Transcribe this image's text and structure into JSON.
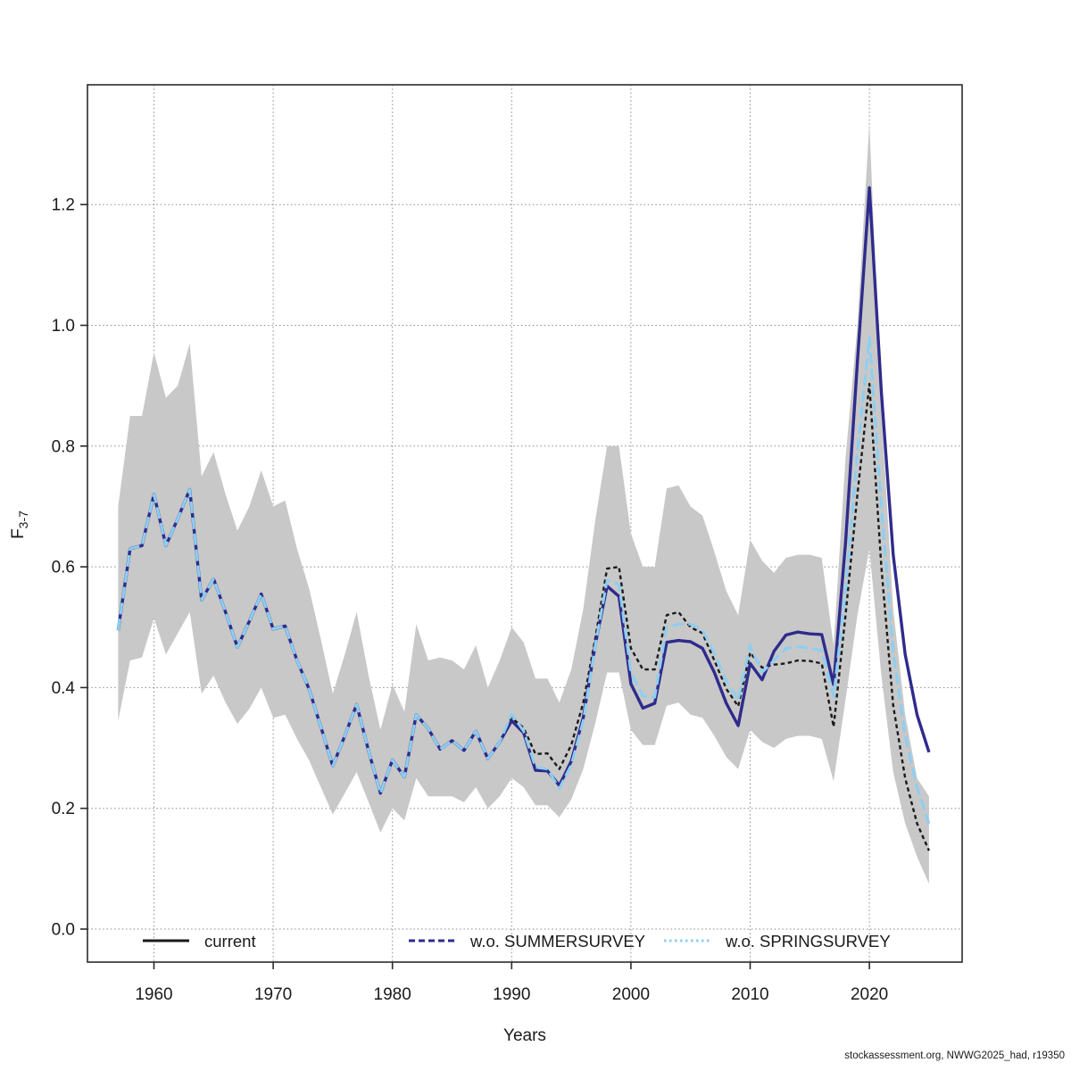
{
  "page": {
    "background": "#ffffff"
  },
  "footer": {
    "text": "stockassessment.org, NWWG2025_had, r19350"
  },
  "chart_data": {
    "type": "line",
    "title": "",
    "xlabel": "Years",
    "ylabel_main": "F",
    "ylabel_sub": "3-7",
    "x_ticks": [
      1960,
      1970,
      1980,
      1990,
      2000,
      2010,
      2020
    ],
    "y_ticks": [
      0.0,
      0.2,
      0.4,
      0.6,
      0.8,
      1.0,
      1.2
    ],
    "y_tick_labels": [
      "0.0",
      "0.2",
      "0.4",
      "0.6",
      "0.8",
      "1.0",
      "1.2"
    ],
    "xlim": [
      1954.4,
      2027.8
    ],
    "ylim": [
      -0.109,
      1.397
    ],
    "grid": "dotted",
    "legend_position": "bottom-inside",
    "band": {
      "color": "#c8c8c8",
      "belongs_to": "current",
      "lower": [
        0.345,
        0.445,
        0.45,
        0.515,
        0.455,
        0.49,
        0.525,
        0.39,
        0.42,
        0.375,
        0.34,
        0.365,
        0.4,
        0.35,
        0.355,
        0.315,
        0.28,
        0.235,
        0.19,
        0.225,
        0.26,
        0.21,
        0.16,
        0.2,
        0.18,
        0.25,
        0.22,
        0.22,
        0.22,
        0.21,
        0.235,
        0.2,
        0.22,
        0.25,
        0.235,
        0.205,
        0.205,
        0.185,
        0.215,
        0.265,
        0.34,
        0.425,
        0.425,
        0.33,
        0.305,
        0.305,
        0.37,
        0.375,
        0.355,
        0.35,
        0.32,
        0.285,
        0.265,
        0.33,
        0.31,
        0.3,
        0.315,
        0.32,
        0.32,
        0.315,
        0.245,
        0.38,
        0.52,
        0.63,
        0.42,
        0.26,
        0.175,
        0.12,
        0.075
      ],
      "upper": [
        0.7,
        0.85,
        0.85,
        0.955,
        0.88,
        0.9,
        0.97,
        0.75,
        0.79,
        0.72,
        0.66,
        0.7,
        0.76,
        0.7,
        0.71,
        0.63,
        0.565,
        0.48,
        0.39,
        0.455,
        0.525,
        0.42,
        0.33,
        0.405,
        0.36,
        0.505,
        0.445,
        0.45,
        0.445,
        0.43,
        0.47,
        0.4,
        0.445,
        0.5,
        0.475,
        0.415,
        0.415,
        0.375,
        0.43,
        0.53,
        0.675,
        0.8,
        0.8,
        0.655,
        0.6,
        0.6,
        0.73,
        0.735,
        0.7,
        0.685,
        0.625,
        0.56,
        0.52,
        0.645,
        0.61,
        0.59,
        0.615,
        0.62,
        0.62,
        0.615,
        0.47,
        0.78,
        1.0,
        1.335,
        0.86,
        0.53,
        0.355,
        0.25,
        0.22
      ]
    },
    "x": [
      1957,
      1958,
      1959,
      1960,
      1961,
      1962,
      1963,
      1964,
      1965,
      1966,
      1967,
      1968,
      1969,
      1970,
      1971,
      1972,
      1973,
      1974,
      1975,
      1976,
      1977,
      1978,
      1979,
      1980,
      1981,
      1982,
      1983,
      1984,
      1985,
      1986,
      1987,
      1988,
      1989,
      1990,
      1991,
      1992,
      1993,
      1994,
      1995,
      1996,
      1997,
      1998,
      1999,
      2000,
      2001,
      2002,
      2003,
      2004,
      2005,
      2006,
      2007,
      2008,
      2009,
      2010,
      2011,
      2012,
      2013,
      2014,
      2015,
      2016,
      2017,
      2018,
      2019,
      2020,
      2021,
      2022,
      2023,
      2024,
      2025
    ],
    "series": [
      {
        "name": "current",
        "color": "#1a1a1a",
        "style": "dashed",
        "values": [
          0.495,
          0.63,
          0.635,
          0.72,
          0.635,
          0.68,
          0.728,
          0.545,
          0.58,
          0.525,
          0.467,
          0.51,
          0.555,
          0.497,
          0.502,
          0.445,
          0.398,
          0.335,
          0.27,
          0.32,
          0.372,
          0.295,
          0.225,
          0.28,
          0.252,
          0.355,
          0.332,
          0.298,
          0.312,
          0.296,
          0.328,
          0.282,
          0.31,
          0.35,
          0.333,
          0.29,
          0.291,
          0.265,
          0.305,
          0.375,
          0.48,
          0.597,
          0.6,
          0.465,
          0.43,
          0.43,
          0.52,
          0.525,
          0.5,
          0.49,
          0.445,
          0.398,
          0.369,
          0.458,
          0.433,
          0.438,
          0.44,
          0.445,
          0.444,
          0.44,
          0.335,
          0.52,
          0.72,
          0.903,
          0.6,
          0.37,
          0.25,
          0.175,
          0.13
        ]
      },
      {
        "name": "w.o. SUMMERSURVEY",
        "color": "#2f2b8c",
        "style": "solid",
        "values": [
          0.495,
          0.63,
          0.635,
          0.72,
          0.635,
          0.68,
          0.728,
          0.545,
          0.58,
          0.525,
          0.467,
          0.51,
          0.555,
          0.497,
          0.502,
          0.445,
          0.398,
          0.335,
          0.27,
          0.32,
          0.372,
          0.295,
          0.225,
          0.28,
          0.252,
          0.355,
          0.332,
          0.298,
          0.312,
          0.296,
          0.328,
          0.282,
          0.31,
          0.345,
          0.325,
          0.263,
          0.262,
          0.238,
          0.278,
          0.35,
          0.47,
          0.568,
          0.551,
          0.406,
          0.366,
          0.374,
          0.475,
          0.478,
          0.476,
          0.465,
          0.425,
          0.374,
          0.337,
          0.44,
          0.413,
          0.46,
          0.487,
          0.492,
          0.489,
          0.488,
          0.405,
          0.64,
          0.94,
          1.228,
          0.89,
          0.62,
          0.455,
          0.355,
          0.293
        ]
      },
      {
        "name": "w.o. SPRINGSURVEY",
        "color": "#8ccfF2",
        "style": "dotted",
        "values": [
          0.495,
          0.63,
          0.635,
          0.72,
          0.635,
          0.68,
          0.728,
          0.545,
          0.58,
          0.525,
          0.467,
          0.51,
          0.555,
          0.497,
          0.502,
          0.445,
          0.398,
          0.335,
          0.27,
          0.32,
          0.372,
          0.295,
          0.225,
          0.28,
          0.252,
          0.355,
          0.332,
          0.298,
          0.312,
          0.296,
          0.328,
          0.282,
          0.31,
          0.356,
          0.328,
          0.268,
          0.265,
          0.233,
          0.272,
          0.345,
          0.468,
          0.578,
          0.571,
          0.425,
          0.386,
          0.384,
          0.5,
          0.505,
          0.505,
          0.495,
          0.457,
          0.411,
          0.379,
          0.47,
          0.425,
          0.445,
          0.465,
          0.468,
          0.465,
          0.462,
          0.385,
          0.56,
          0.79,
          0.98,
          0.7,
          0.46,
          0.32,
          0.235,
          0.175
        ]
      }
    ]
  }
}
